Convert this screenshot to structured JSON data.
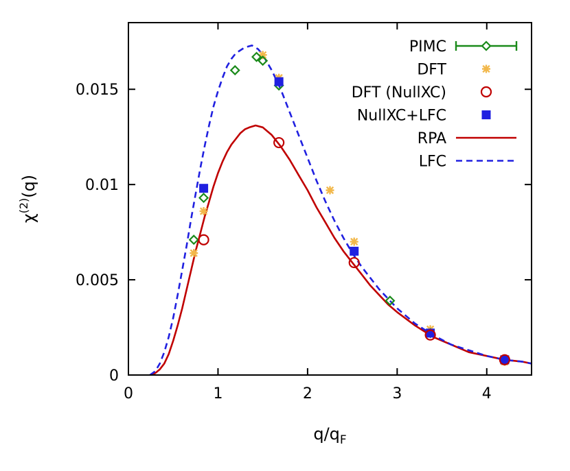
{
  "chart_data": {
    "type": "line",
    "xlabel_base": "q/q",
    "xlabel_sub": "F",
    "ylabel_base": "χ",
    "ylabel_sup": "(2)",
    "ylabel_tail": "(q)",
    "xlim": [
      0,
      4.5
    ],
    "ylim": [
      0,
      0.0185
    ],
    "xticks": [
      0,
      1,
      2,
      3,
      4
    ],
    "xtick_labels": [
      "0",
      "1",
      "2",
      "3",
      "4"
    ],
    "yticks": [
      0,
      0.005,
      0.01,
      0.015
    ],
    "ytick_labels": [
      "0",
      "0.005",
      "0.01",
      "0.015"
    ],
    "grid": false,
    "legend_position": "top-right",
    "series": [
      {
        "name": "PIMC",
        "kind": "errorbar-diamond",
        "color": "#1a8a1a",
        "points": [
          [
            0.73,
            0.0071
          ],
          [
            0.84,
            0.0093
          ],
          [
            1.19,
            0.016
          ],
          [
            1.43,
            0.0167
          ],
          [
            1.5,
            0.0165
          ],
          [
            1.68,
            0.0152
          ],
          [
            2.92,
            0.0039
          ],
          [
            3.37,
            0.0022
          ],
          [
            4.2,
            0.0008
          ]
        ]
      },
      {
        "name": "DFT",
        "kind": "star",
        "color": "#f2b84b",
        "points": [
          [
            0.73,
            0.0064
          ],
          [
            0.84,
            0.0086
          ],
          [
            1.5,
            0.0168
          ],
          [
            1.68,
            0.0156
          ],
          [
            2.25,
            0.0097
          ],
          [
            2.52,
            0.007
          ],
          [
            3.37,
            0.0024
          ],
          [
            4.2,
            0.0007
          ]
        ]
      },
      {
        "name": "DFT (NullXC)",
        "kind": "circle",
        "color": "#c00000",
        "points": [
          [
            0.84,
            0.0071
          ],
          [
            1.68,
            0.0122
          ],
          [
            2.52,
            0.0059
          ],
          [
            3.37,
            0.0021
          ],
          [
            4.2,
            0.0008
          ]
        ]
      },
      {
        "name": "NullXC+LFC",
        "kind": "square",
        "color": "#2020e0",
        "points": [
          [
            0.84,
            0.0098
          ],
          [
            1.68,
            0.0154
          ],
          [
            2.52,
            0.0065
          ],
          [
            3.37,
            0.0022
          ],
          [
            4.2,
            0.0008
          ]
        ]
      },
      {
        "name": "RPA",
        "kind": "line-solid",
        "color": "#c00000",
        "points": [
          [
            0.24,
            0.0
          ],
          [
            0.3,
            0.0001
          ],
          [
            0.35,
            0.0003
          ],
          [
            0.4,
            0.0006
          ],
          [
            0.45,
            0.0011
          ],
          [
            0.5,
            0.0018
          ],
          [
            0.55,
            0.0026
          ],
          [
            0.6,
            0.0035
          ],
          [
            0.65,
            0.0045
          ],
          [
            0.7,
            0.0055
          ],
          [
            0.75,
            0.0065
          ],
          [
            0.8,
            0.0074
          ],
          [
            0.85,
            0.0083
          ],
          [
            0.9,
            0.0091
          ],
          [
            0.95,
            0.0099
          ],
          [
            1.0,
            0.0106
          ],
          [
            1.05,
            0.0112
          ],
          [
            1.1,
            0.0117
          ],
          [
            1.15,
            0.0121
          ],
          [
            1.2,
            0.0124
          ],
          [
            1.25,
            0.0127
          ],
          [
            1.3,
            0.0129
          ],
          [
            1.35,
            0.013
          ],
          [
            1.42,
            0.0131
          ],
          [
            1.5,
            0.013
          ],
          [
            1.55,
            0.0128
          ],
          [
            1.6,
            0.0126
          ],
          [
            1.7,
            0.012
          ],
          [
            1.8,
            0.0113
          ],
          [
            1.9,
            0.0105
          ],
          [
            2.0,
            0.0097
          ],
          [
            2.1,
            0.0088
          ],
          [
            2.2,
            0.008
          ],
          [
            2.3,
            0.0072
          ],
          [
            2.4,
            0.0065
          ],
          [
            2.5,
            0.0059
          ],
          [
            2.6,
            0.0053
          ],
          [
            2.7,
            0.0047
          ],
          [
            2.8,
            0.0042
          ],
          [
            2.9,
            0.0037
          ],
          [
            3.0,
            0.0033
          ],
          [
            3.2,
            0.0026
          ],
          [
            3.4,
            0.002
          ],
          [
            3.6,
            0.0016
          ],
          [
            3.8,
            0.0012
          ],
          [
            4.0,
            0.001
          ],
          [
            4.2,
            0.0008
          ],
          [
            4.4,
            0.0007
          ],
          [
            4.5,
            0.0006
          ]
        ]
      },
      {
        "name": "LFC",
        "kind": "line-dashed",
        "color": "#2020e0",
        "points": [
          [
            0.24,
            0.0
          ],
          [
            0.3,
            0.0002
          ],
          [
            0.35,
            0.0006
          ],
          [
            0.4,
            0.0012
          ],
          [
            0.45,
            0.002
          ],
          [
            0.5,
            0.003
          ],
          [
            0.55,
            0.0042
          ],
          [
            0.6,
            0.0055
          ],
          [
            0.65,
            0.0068
          ],
          [
            0.7,
            0.0082
          ],
          [
            0.75,
            0.0095
          ],
          [
            0.8,
            0.0108
          ],
          [
            0.85,
            0.012
          ],
          [
            0.9,
            0.0131
          ],
          [
            0.95,
            0.0141
          ],
          [
            1.0,
            0.0149
          ],
          [
            1.05,
            0.0156
          ],
          [
            1.1,
            0.0162
          ],
          [
            1.15,
            0.0166
          ],
          [
            1.2,
            0.0169
          ],
          [
            1.3,
            0.0172
          ],
          [
            1.38,
            0.0173
          ],
          [
            1.45,
            0.0171
          ],
          [
            1.5,
            0.0168
          ],
          [
            1.6,
            0.016
          ],
          [
            1.7,
            0.015
          ],
          [
            1.8,
            0.0138
          ],
          [
            1.9,
            0.0126
          ],
          [
            2.0,
            0.0114
          ],
          [
            2.1,
            0.0102
          ],
          [
            2.2,
            0.0091
          ],
          [
            2.3,
            0.0081
          ],
          [
            2.4,
            0.0072
          ],
          [
            2.5,
            0.0064
          ],
          [
            2.6,
            0.0057
          ],
          [
            2.7,
            0.0051
          ],
          [
            2.8,
            0.0045
          ],
          [
            2.9,
            0.004
          ],
          [
            3.0,
            0.0035
          ],
          [
            3.2,
            0.0027
          ],
          [
            3.4,
            0.0021
          ],
          [
            3.6,
            0.0016
          ],
          [
            3.8,
            0.0013
          ],
          [
            4.0,
            0.001
          ],
          [
            4.2,
            0.0008
          ],
          [
            4.4,
            0.0007
          ],
          [
            4.5,
            0.0006
          ]
        ]
      }
    ]
  }
}
